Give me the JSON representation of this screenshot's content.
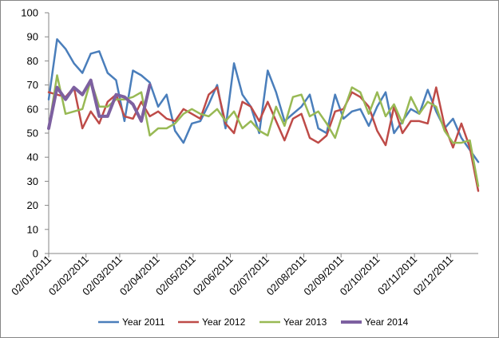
{
  "chart_data": {
    "type": "line",
    "title": "",
    "xlabel": "",
    "ylabel": "",
    "ylim": [
      0,
      100
    ],
    "yticks": [
      0,
      10,
      20,
      30,
      40,
      50,
      60,
      70,
      80,
      90,
      100
    ],
    "grid": "none",
    "legend_position": "bottom",
    "x_tick_labels": [
      "02/01/2011",
      "02/02/2011",
      "02/03/2011",
      "02/04/2011",
      "02/05/2011",
      "02/06/2011",
      "02/07/2011",
      "02/08/2011",
      "02/09/2011",
      "02/10/2011",
      "02/11/2011",
      "02/12/2011"
    ],
    "x_tick_weeks": [
      0,
      4.43,
      8.43,
      12.86,
      17.14,
      21.57,
      25.86,
      30.29,
      34.71,
      39,
      43.43,
      47.71
    ],
    "x_week_count": 52,
    "series": [
      {
        "name": "Year 2011",
        "color": "#4a7ebb",
        "values": [
          64,
          89,
          85,
          79,
          75,
          83,
          84,
          75,
          72,
          55,
          76,
          74,
          71,
          61,
          66,
          51,
          46,
          54,
          55,
          62,
          70,
          52,
          79,
          66,
          61,
          50,
          76,
          67,
          55,
          58,
          61,
          66,
          52,
          50,
          66,
          56,
          59,
          60,
          53,
          61,
          67,
          50,
          55,
          60,
          58,
          68,
          59,
          52,
          56,
          48,
          43,
          38
        ]
      },
      {
        "name": "Year 2012",
        "color": "#be4b48",
        "values": [
          67,
          66,
          65,
          69,
          52,
          59,
          54,
          63,
          66,
          57,
          56,
          63,
          57,
          59,
          56,
          55,
          60,
          58,
          56,
          66,
          69,
          54,
          50,
          63,
          61,
          55,
          63,
          55,
          47,
          56,
          58,
          48,
          46,
          49,
          59,
          60,
          67,
          65,
          61,
          51,
          45,
          61,
          50,
          55,
          55,
          54,
          69,
          53,
          44,
          54,
          44,
          26
        ]
      },
      {
        "name": "Year 2013",
        "color": "#98b954",
        "values": [
          52,
          74,
          58,
          59,
          60,
          72,
          61,
          61,
          64,
          64,
          65,
          67,
          49,
          52,
          52,
          54,
          58,
          60,
          58,
          57,
          60,
          55,
          59,
          52,
          55,
          51,
          49,
          61,
          53,
          65,
          66,
          57,
          59,
          54,
          48,
          59,
          69,
          67,
          58,
          67,
          57,
          62,
          54,
          65,
          58,
          63,
          61,
          51,
          46,
          46,
          47,
          28
        ]
      },
      {
        "name": "Year 2014",
        "color": "#7d60a0",
        "values": [
          52,
          69,
          64,
          69,
          66,
          72,
          57,
          57,
          66,
          65,
          62,
          55,
          70
        ]
      }
    ]
  }
}
